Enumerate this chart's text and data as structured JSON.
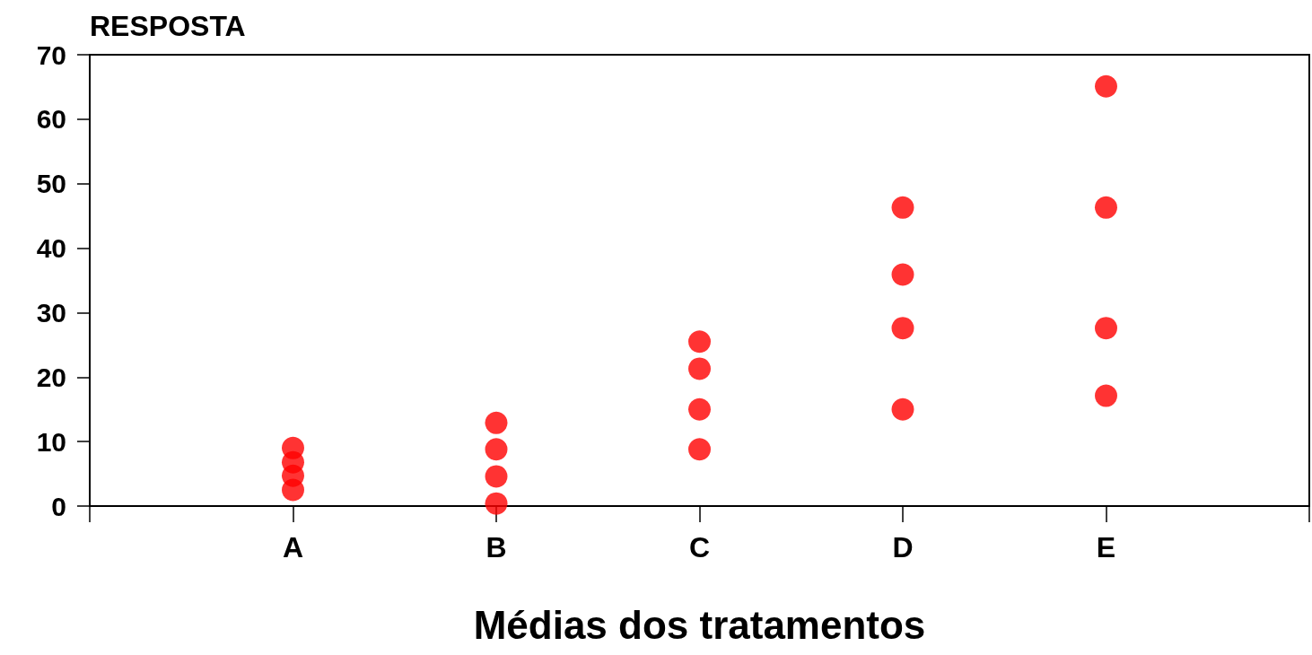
{
  "chart_data": {
    "type": "scatter",
    "ylabel": "RESPOSTA",
    "xlabel": "Médias dos tratamentos",
    "categories": [
      null,
      "A",
      "B",
      "C",
      "D",
      "E",
      null
    ],
    "series": [
      {
        "color": "#ff0000",
        "x": [
          "A",
          "A",
          "A",
          "A",
          "B",
          "B",
          "B",
          "B",
          "C",
          "C",
          "C",
          "C",
          "D",
          "D",
          "D",
          "D",
          "E",
          "E",
          "E",
          "E"
        ],
        "values": [
          2.5,
          4.7,
          6.8,
          9.0,
          0.4,
          4.6,
          8.8,
          12.9,
          8.8,
          15.0,
          21.3,
          25.5,
          15.0,
          27.6,
          35.9,
          46.3,
          17.1,
          27.6,
          46.3,
          65.1
        ]
      }
    ],
    "ylim": [
      0,
      70
    ],
    "yticks": [
      0,
      10,
      20,
      30,
      40,
      50,
      60,
      70
    ],
    "grid": false,
    "marker": "circle"
  }
}
